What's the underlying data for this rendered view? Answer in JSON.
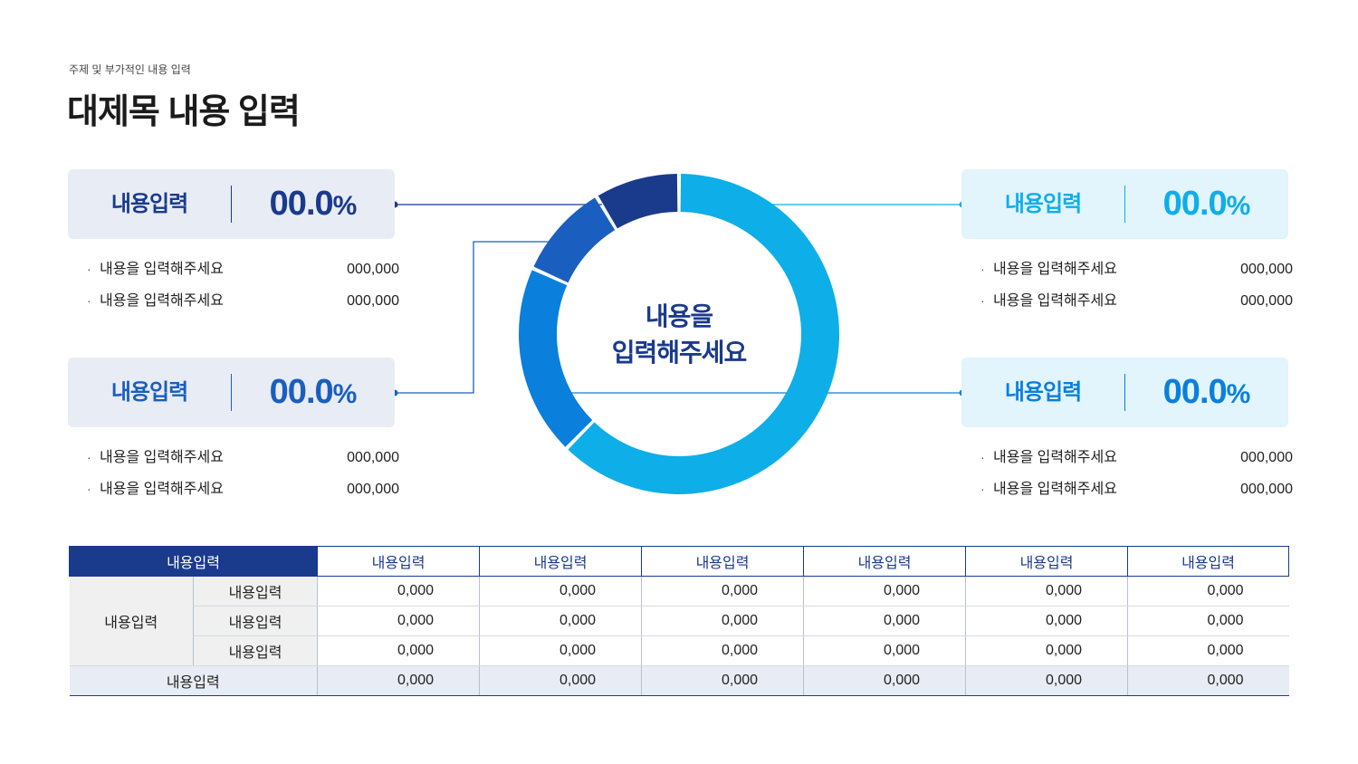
{
  "header": {
    "subtitle": "주제 및 부가적인 내용 입력",
    "title": "대제목 내용 입력"
  },
  "colors": {
    "navy": "#1a3a8c",
    "blue_dark": "#1a5fbf",
    "blue_mid": "#0a7fdc",
    "cyan": "#0eaee8",
    "card_left_bg": "#e8ecf4",
    "card_right_bg": "#e2f4fc"
  },
  "cards": [
    {
      "label": "내용입력",
      "pct": "00.0",
      "unit": "%",
      "bullets": [
        {
          "text": "내용을 입력해주세요",
          "value": "000,000"
        },
        {
          "text": "내용을 입력해주세요",
          "value": "000,000"
        }
      ]
    },
    {
      "label": "내용입력",
      "pct": "00.0",
      "unit": "%",
      "bullets": [
        {
          "text": "내용을 입력해주세요",
          "value": "000,000"
        },
        {
          "text": "내용을 입력해주세요",
          "value": "000,000"
        }
      ]
    },
    {
      "label": "내용입력",
      "pct": "00.0",
      "unit": "%",
      "bullets": [
        {
          "text": "내용을 입력해주세요",
          "value": "000,000"
        },
        {
          "text": "내용을 입력해주세요",
          "value": "000,000"
        }
      ]
    },
    {
      "label": "내용입력",
      "pct": "00.0",
      "unit": "%",
      "bullets": [
        {
          "text": "내용을 입력해주세요",
          "value": "000,000"
        },
        {
          "text": "내용을 입력해주세요",
          "value": "000,000"
        }
      ]
    }
  ],
  "bullet_symbol": "·",
  "center": {
    "line1": "내용을",
    "line2": "입력해주세요"
  },
  "chart_data": {
    "type": "pie",
    "style": "donut",
    "slices": [
      {
        "value": 58,
        "color": "#0eaee8"
      },
      {
        "value": 18,
        "color": "#0a7fdc"
      },
      {
        "value": 9,
        "color": "#1a5fbf"
      },
      {
        "value": 8,
        "color": "#1a3a8c"
      }
    ]
  },
  "table": {
    "corner": "내용입력",
    "columns": [
      "내용입력",
      "내용입력",
      "내용입력",
      "내용입력",
      "내용입력",
      "내용입력"
    ],
    "group_label": "내용입력",
    "rows": [
      {
        "label": "내용입력",
        "values": [
          "0,000",
          "0,000",
          "0,000",
          "0,000",
          "0,000",
          "0,000"
        ]
      },
      {
        "label": "내용입력",
        "values": [
          "0,000",
          "0,000",
          "0,000",
          "0,000",
          "0,000",
          "0,000"
        ]
      },
      {
        "label": "내용입력",
        "values": [
          "0,000",
          "0,000",
          "0,000",
          "0,000",
          "0,000",
          "0,000"
        ]
      }
    ],
    "total": {
      "label": "내용입력",
      "values": [
        "0,000",
        "0,000",
        "0,000",
        "0,000",
        "0,000",
        "0,000"
      ]
    }
  }
}
